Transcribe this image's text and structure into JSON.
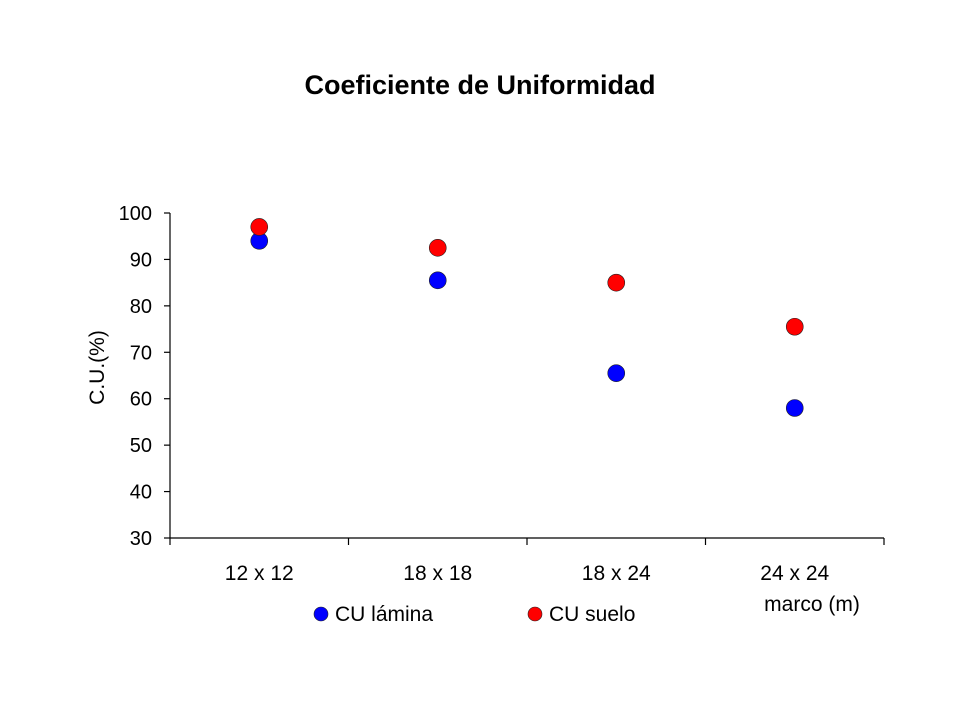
{
  "chart_data": {
    "type": "scatter",
    "title": "Coeficiente de Uniformidad",
    "xlabel": "marco (m)",
    "ylabel": "C.U.(%)",
    "categories": [
      "12 x 12",
      "18 x 18",
      "18 x 24",
      "24 x 24"
    ],
    "ylim": [
      30,
      100
    ],
    "yticks": [
      100,
      90,
      80,
      70,
      60,
      50,
      40,
      30
    ],
    "grid": false,
    "legend_position": "bottom",
    "series": [
      {
        "name": "CU lámina",
        "color": "#0000ff",
        "values": [
          94,
          85.5,
          65.5,
          58
        ]
      },
      {
        "name": "CU suelo",
        "color": "#ff0000",
        "values": [
          97,
          92.5,
          85,
          75.5
        ]
      }
    ]
  }
}
